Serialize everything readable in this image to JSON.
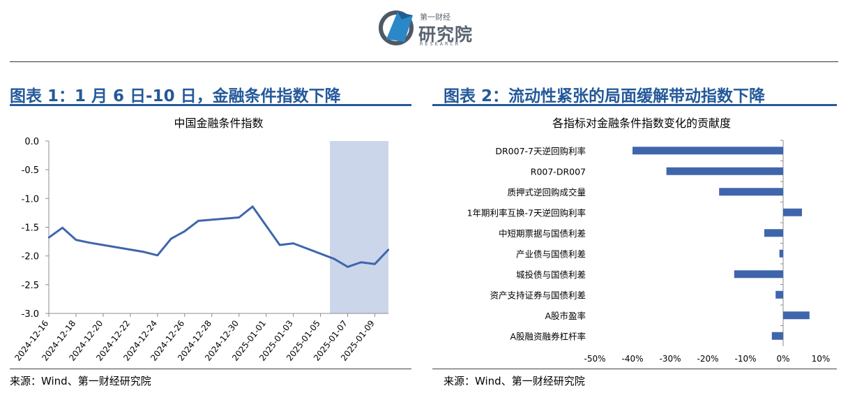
{
  "logo": {
    "small": "第一财经",
    "cn": "研究院",
    "en": "RESEARCH"
  },
  "figure1": {
    "heading": "图表 1：1 月 6 日-10 日，金融条件指数下降",
    "source": "来源：Wind、第一财经研究院",
    "colors": {
      "line": "#3f66ac",
      "shade": "#ccd6ea"
    }
  },
  "figure2": {
    "heading": "图表 2：流动性紧张的局面缓解带动指数下降",
    "source": "来源：Wind、第一财经研究院",
    "colors": {
      "bar": "#3f66ac"
    }
  },
  "chart_data": [
    {
      "type": "line",
      "title": "中国金融条件指数",
      "xlabel": "",
      "ylabel": "",
      "ylim": [
        -3.0,
        0.0
      ],
      "yticks": [
        "0.0",
        "-0.5",
        "-1.0",
        "-1.5",
        "-2.0",
        "-2.5",
        "-3.0"
      ],
      "xticks": [
        "2024-12-16",
        "2024-12-18",
        "2024-12-20",
        "2024-12-22",
        "2024-12-24",
        "2024-12-26",
        "2024-12-28",
        "2024-12-30",
        "2025-01-01",
        "2025-01-03",
        "2025-01-05",
        "2025-01-07",
        "2025-01-09"
      ],
      "x_range": [
        "2024-12-16",
        "2025-01-10"
      ],
      "shaded_range": [
        "2025-01-06",
        "2025-01-10"
      ],
      "grid": false,
      "series": [
        {
          "x": [
            "2024-12-16",
            "2024-12-17",
            "2024-12-18",
            "2024-12-19",
            "2024-12-20",
            "2024-12-23",
            "2024-12-24",
            "2024-12-25",
            "2024-12-26",
            "2024-12-27",
            "2024-12-30",
            "2024-12-31",
            "2025-01-02",
            "2025-01-03",
            "2025-01-06",
            "2025-01-07",
            "2025-01-08",
            "2025-01-09",
            "2025-01-10"
          ],
          "values": [
            -1.68,
            -1.51,
            -1.72,
            -1.77,
            -1.81,
            -1.93,
            -1.99,
            -1.7,
            -1.57,
            -1.39,
            -1.33,
            -1.14,
            -1.81,
            -1.78,
            -2.05,
            -2.19,
            -2.11,
            -2.14,
            -1.89
          ]
        }
      ]
    },
    {
      "type": "bar",
      "orientation": "horizontal",
      "title": "各指标对金融条件指数变化的贡献度",
      "categories": [
        "DR007-7天逆回购利率",
        "R007-DR007",
        "质押式逆回购成交量",
        "1年期利率互换-7天逆回购利率",
        "中短期票据与国债利差",
        "产业债与国债利差",
        "城投债与国债利差",
        "资产支持证券与国债利差",
        "A股市盈率",
        "A股融资融券杠杆率"
      ],
      "values": [
        -40,
        -31,
        -17,
        5,
        -5,
        -1,
        -13,
        -2,
        7,
        -3
      ],
      "unit": "%",
      "xlim": [
        -50,
        10
      ],
      "xticks": [
        "-50%",
        "-40%",
        "-30%",
        "-20%",
        "-10%",
        "0%",
        "10%"
      ],
      "grid": false
    }
  ]
}
